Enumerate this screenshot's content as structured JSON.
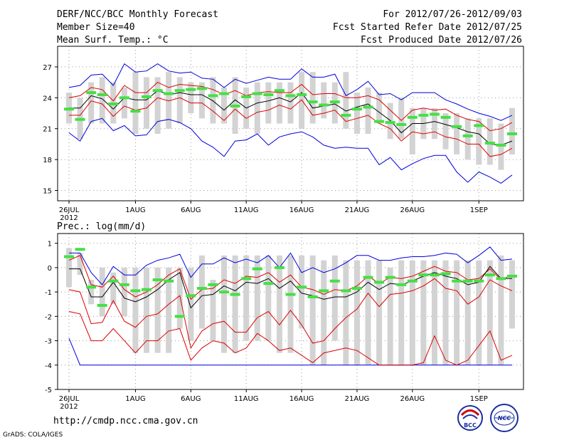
{
  "header": {
    "left": [
      "DERF/NCC/BCC Monthly Forecast",
      "Member Size=40",
      "Mean Surf. Temp.: °C"
    ],
    "right": [
      "For 2012/07/26-2012/09/03",
      "Fcst Started Refer Date 2012/07/25",
      "Fcst Produced Date 2012/07/26"
    ]
  },
  "footer": {
    "url": "http://cmdp.ncc.cma.gov.cn",
    "credit": "GrADS: COLA/IGES",
    "logo1": "BCC",
    "logo2": "NCC"
  },
  "colors": {
    "box": "#d3d3d3",
    "median": "#44e044",
    "mean": "#000000",
    "inner": "#dd0000",
    "outer": "#0000dd",
    "grid": "#999999"
  },
  "chart_data": [
    {
      "type": "box-plume",
      "title": "Mean Surf. Temp.: °C",
      "xlabel": "",
      "ylabel": "",
      "ylim": [
        14,
        29
      ],
      "yticks": [
        15,
        18,
        21,
        24,
        27
      ],
      "x_start_day": 1,
      "x_end_day": 41,
      "xticks": [
        {
          "day": 1,
          "label": "26JUL",
          "sub": "2012"
        },
        {
          "day": 7,
          "label": "1AUG"
        },
        {
          "day": 12,
          "label": "6AUG"
        },
        {
          "day": 17,
          "label": "11AUG"
        },
        {
          "day": 22,
          "label": "16AUG"
        },
        {
          "day": 27,
          "label": "21AUG"
        },
        {
          "day": 32,
          "label": "26AUG"
        },
        {
          "day": 38,
          "label": "1SEP"
        }
      ],
      "series": [
        {
          "name": "box_low",
          "values": [
            21.5,
            20.0,
            21.5,
            21.5,
            21.5,
            22.0,
            20.5,
            21.0,
            20.5,
            21.0,
            21.5,
            22.5,
            22.0,
            21.5,
            21.5,
            20.5,
            21.0,
            20.5,
            21.5,
            21.5,
            21.5,
            21.0,
            21.5,
            22.0,
            21.5,
            21.0,
            20.5,
            20.5,
            21.5,
            20.0,
            20.0,
            18.5,
            20.0,
            20.0,
            19.0,
            18.5,
            18.0,
            17.5,
            17.5,
            17.0,
            18.5
          ]
        },
        {
          "name": "box_high",
          "values": [
            24.5,
            24.0,
            25.5,
            26.0,
            25.5,
            25.0,
            26.5,
            26.0,
            26.0,
            26.5,
            26.0,
            25.5,
            25.5,
            26.0,
            25.0,
            26.0,
            25.0,
            25.5,
            25.5,
            25.5,
            25.5,
            26.5,
            26.5,
            25.5,
            25.5,
            26.5,
            24.5,
            25.0,
            24.5,
            23.5,
            24.0,
            23.0,
            23.0,
            23.0,
            22.5,
            22.5,
            22.0,
            22.0,
            22.0,
            21.5,
            23.0
          ]
        },
        {
          "name": "median",
          "values": [
            22.9,
            21.9,
            24.5,
            24.3,
            23.4,
            24.0,
            22.7,
            24.1,
            24.7,
            24.4,
            24.7,
            24.8,
            24.9,
            24.2,
            24.4,
            23.2,
            24.1,
            24.4,
            24.3,
            24.7,
            24.2,
            24.3,
            23.6,
            23.3,
            23.6,
            22.3,
            22.9,
            23.1,
            21.7,
            21.6,
            21.4,
            22.1,
            22.3,
            22.4,
            22.1,
            21.2,
            20.3,
            21.3,
            19.6,
            19.4,
            20.5
          ]
        },
        {
          "name": "p90",
          "values": [
            24.0,
            24.2,
            25.0,
            24.8,
            23.7,
            25.2,
            24.5,
            24.5,
            25.5,
            25.0,
            25.3,
            25.2,
            25.1,
            24.8,
            24.3,
            24.7,
            24.2,
            24.5,
            24.6,
            24.5,
            24.5,
            25.3,
            24.3,
            24.4,
            24.4,
            24.0,
            24.0,
            24.2,
            23.8,
            22.8,
            21.8,
            22.8,
            23.0,
            22.8,
            22.9,
            22.3,
            21.9,
            21.7,
            20.8,
            21.0,
            21.6
          ]
        },
        {
          "name": "mean",
          "values": [
            23.0,
            23.0,
            24.2,
            23.9,
            22.9,
            24.0,
            23.8,
            23.8,
            24.7,
            24.3,
            24.5,
            24.3,
            24.3,
            23.7,
            22.8,
            23.8,
            23.0,
            23.5,
            23.7,
            24.0,
            23.6,
            24.5,
            23.0,
            23.2,
            23.4,
            22.7,
            23.1,
            23.4,
            22.6,
            21.8,
            20.6,
            21.5,
            21.5,
            21.7,
            21.4,
            21.1,
            20.7,
            20.5,
            19.5,
            19.4,
            19.8
          ]
        },
        {
          "name": "p10",
          "values": [
            22.3,
            22.3,
            23.7,
            23.4,
            22.2,
            23.2,
            22.8,
            23.0,
            24.0,
            23.7,
            24.0,
            23.5,
            23.5,
            22.7,
            21.8,
            22.9,
            22.0,
            22.6,
            22.8,
            23.3,
            22.9,
            23.8,
            22.3,
            22.5,
            22.8,
            21.7,
            22.0,
            22.3,
            21.5,
            21.0,
            19.8,
            20.7,
            20.5,
            20.7,
            20.2,
            20.0,
            19.5,
            19.5,
            18.3,
            18.5,
            19.1
          ]
        },
        {
          "name": "max",
          "values": [
            25.0,
            25.2,
            26.2,
            26.3,
            25.2,
            27.3,
            26.5,
            26.6,
            27.3,
            26.6,
            26.4,
            26.5,
            25.9,
            25.8,
            25.0,
            25.8,
            25.4,
            25.7,
            26.0,
            25.8,
            25.8,
            26.8,
            26.0,
            26.0,
            26.3,
            24.2,
            24.8,
            25.6,
            24.3,
            24.4,
            23.8,
            24.5,
            24.5,
            24.5,
            23.8,
            23.4,
            22.9,
            22.5,
            22.2,
            21.8,
            22.3
          ]
        },
        {
          "name": "min",
          "values": [
            20.6,
            19.8,
            21.7,
            22.0,
            20.8,
            21.3,
            20.3,
            20.4,
            21.7,
            21.9,
            21.6,
            21.0,
            19.8,
            19.2,
            18.3,
            19.8,
            19.9,
            20.5,
            19.4,
            20.2,
            20.5,
            20.7,
            20.2,
            19.4,
            19.1,
            19.2,
            19.1,
            19.1,
            17.5,
            18.2,
            17.0,
            17.6,
            18.1,
            18.4,
            18.4,
            16.8,
            15.8,
            16.8,
            16.3,
            15.7,
            16.5
          ]
        }
      ]
    },
    {
      "type": "box-plume",
      "title": "Prec.: log(mm/d)",
      "xlabel": "",
      "ylabel": "",
      "ylim": [
        -5,
        1.4
      ],
      "yticks": [
        -5,
        -4,
        -3,
        -2,
        -1,
        0,
        1
      ],
      "x_start_day": 1,
      "x_end_day": 41,
      "xticks": [
        {
          "day": 1,
          "label": "26JUL",
          "sub": "2012"
        },
        {
          "day": 7,
          "label": "1AUG"
        },
        {
          "day": 12,
          "label": "6AUG"
        },
        {
          "day": 17,
          "label": "11AUG"
        },
        {
          "day": 22,
          "label": "16AUG"
        },
        {
          "day": 27,
          "label": "21AUG"
        },
        {
          "day": 32,
          "label": "26AUG"
        },
        {
          "day": 38,
          "label": "1SEP"
        }
      ],
      "series": [
        {
          "name": "box_low",
          "values": [
            -0.8,
            -0.3,
            -1.5,
            -2.0,
            -1.5,
            -2.0,
            -3.5,
            -3.5,
            -3.5,
            -3.5,
            -2.5,
            -3.0,
            -2.5,
            -3.0,
            -3.5,
            -3.5,
            -3.0,
            -3.0,
            -3.0,
            -3.5,
            -3.5,
            -2.5,
            -4.0,
            -4.0,
            -3.0,
            -4.0,
            -4.0,
            -4.0,
            -4.0,
            -4.0,
            -4.0,
            -4.0,
            -4.0,
            -4.0,
            -4.0,
            -4.0,
            -4.0,
            -4.0,
            -4.0,
            -4.0,
            -2.5
          ]
        },
        {
          "name": "box_high",
          "values": [
            0.8,
            0.6,
            -0.5,
            0.0,
            -0.2,
            0.0,
            0.0,
            0.0,
            0.0,
            0.0,
            0.0,
            0.0,
            0.5,
            -0.5,
            0.5,
            0.5,
            0.5,
            0.5,
            0.5,
            0.5,
            0.5,
            0.5,
            0.5,
            0.3,
            0.5,
            0.3,
            0.3,
            0.3,
            0.3,
            0.0,
            0.3,
            0.3,
            0.3,
            0.3,
            0.3,
            0.3,
            0.3,
            0.3,
            0.3,
            0.5,
            0.3
          ]
        },
        {
          "name": "median",
          "values": [
            0.45,
            0.75,
            -0.8,
            -1.55,
            -0.55,
            -0.7,
            -0.95,
            -0.9,
            -0.5,
            -0.55,
            -2.0,
            -1.15,
            -0.85,
            -0.7,
            -1.0,
            -1.1,
            -0.45,
            -0.05,
            -0.65,
            0.0,
            -1.1,
            -0.8,
            -1.2,
            -0.95,
            -0.55,
            -0.95,
            -0.85,
            -0.4,
            -0.6,
            -0.4,
            -0.7,
            -0.55,
            -0.3,
            -0.3,
            -0.25,
            -0.55,
            -0.55,
            -0.55,
            -0.3,
            -0.45,
            -0.35
          ]
        },
        {
          "name": "p90",
          "values": [
            0.3,
            0.5,
            -0.7,
            -0.8,
            -0.35,
            -0.9,
            -1.2,
            -1.0,
            -0.7,
            -0.3,
            -0.05,
            -1.3,
            -0.9,
            -0.85,
            -0.5,
            -0.65,
            -0.35,
            -0.4,
            -0.2,
            -0.6,
            -0.3,
            -0.8,
            -0.9,
            -1.1,
            -0.9,
            -0.95,
            -0.75,
            -0.35,
            -0.65,
            -0.4,
            -0.45,
            -0.35,
            -0.15,
            0.05,
            -0.15,
            -0.2,
            -0.5,
            -0.45,
            -0.05,
            -0.5,
            -0.3
          ]
        },
        {
          "name": "mean",
          "values": [
            -0.05,
            -0.05,
            -1.2,
            -1.2,
            -0.6,
            -1.25,
            -1.4,
            -1.2,
            -0.9,
            -0.5,
            -0.2,
            -1.65,
            -1.15,
            -1.1,
            -0.75,
            -0.95,
            -0.6,
            -0.65,
            -0.45,
            -0.85,
            -0.55,
            -1.05,
            -1.15,
            -1.3,
            -1.2,
            -1.2,
            -1.0,
            -0.6,
            -0.9,
            -0.65,
            -0.7,
            -0.55,
            -0.35,
            -0.2,
            -0.35,
            -0.45,
            -0.7,
            -0.6,
            0.05,
            -0.45,
            -0.45
          ]
        },
        {
          "name": "p10",
          "values": [
            -0.9,
            -1.0,
            -2.3,
            -2.25,
            -1.35,
            -2.2,
            -2.45,
            -2.0,
            -1.9,
            -1.5,
            -1.15,
            -3.3,
            -2.6,
            -2.3,
            -2.2,
            -2.65,
            -2.65,
            -2.05,
            -1.8,
            -2.35,
            -1.75,
            -2.35,
            -3.1,
            -3.0,
            -2.5,
            -2.05,
            -1.7,
            -1.05,
            -1.6,
            -1.1,
            -1.05,
            -0.95,
            -0.75,
            -0.45,
            -0.85,
            -0.95,
            -1.5,
            -1.2,
            -0.5,
            -0.75,
            -0.95
          ]
        },
        {
          "name": "max",
          "values": [
            0.6,
            0.6,
            -0.2,
            -0.7,
            0.05,
            -0.3,
            -0.3,
            0.1,
            0.3,
            0.4,
            0.55,
            -0.4,
            0.15,
            0.15,
            0.4,
            0.2,
            0.35,
            0.2,
            0.5,
            0.0,
            0.6,
            -0.2,
            0.0,
            -0.2,
            -0.05,
            0.2,
            0.5,
            0.5,
            0.3,
            0.3,
            0.4,
            0.45,
            0.45,
            0.5,
            0.6,
            0.55,
            0.2,
            0.5,
            0.85,
            0.3,
            0.35
          ]
        },
        {
          "name": "min",
          "values": [
            -2.9,
            -4.0,
            -4.0,
            -4.0,
            -4.0,
            -4.0,
            -4.0,
            -4.0,
            -4.0,
            -4.0,
            -4.0,
            -4.0,
            -4.0,
            -4.0,
            -4.0,
            -4.0,
            -4.0,
            -4.0,
            -4.0,
            -4.0,
            -4.0,
            -4.0,
            -4.0,
            -4.0,
            -4.0,
            -4.0,
            -4.0,
            -4.0,
            -4.0,
            -4.0,
            -4.0,
            -4.0,
            -4.0,
            -4.0,
            -4.0,
            -4.0,
            -4.0,
            -4.0,
            -4.0,
            -4.0,
            -4.0
          ]
        },
        {
          "name": "p10_lower",
          "values": [
            -1.8,
            -1.9,
            -3.0,
            -3.0,
            -2.5,
            -3.0,
            -3.5,
            -3.0,
            -3.0,
            -2.6,
            -2.5,
            -3.8,
            -3.3,
            -3.0,
            -3.1,
            -3.5,
            -3.3,
            -2.7,
            -3.0,
            -3.4,
            -3.3,
            -3.6,
            -3.9,
            -3.5,
            -3.4,
            -3.3,
            -3.4,
            -3.7,
            -4.0,
            -4.0,
            -4.0,
            -4.0,
            -3.9,
            -2.8,
            -3.8,
            -4.0,
            -3.8,
            -3.2,
            -2.6,
            -3.8,
            -3.6
          ]
        }
      ]
    }
  ]
}
